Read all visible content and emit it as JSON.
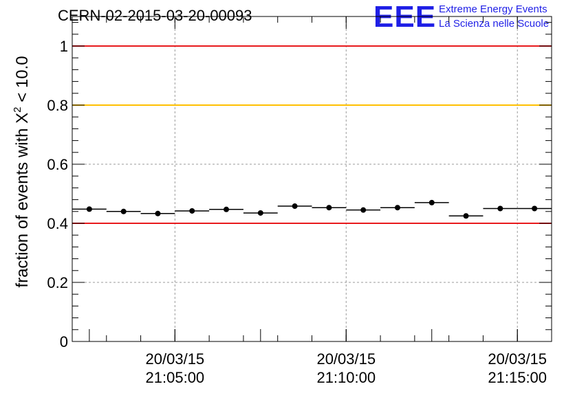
{
  "header": {
    "title": "CERN-02-2015-03-20-00093",
    "logo_text": "EEE",
    "logo_line1": "Extreme Energy Events",
    "logo_line2": "La Scienza nelle Scuole"
  },
  "chart_data": {
    "type": "scatter",
    "title": "CERN-02-2015-03-20-00093",
    "ylabel_prefix": "fraction of events with ",
    "ylabel_symbol": "X",
    "ylabel_sup": "2",
    "ylabel_suffix": " < 10.0",
    "xlabel": "",
    "ylim": [
      0,
      1.1
    ],
    "yticks": [
      0,
      0.2,
      0.4,
      0.6,
      0.8,
      1
    ],
    "ytick_labels": [
      "0",
      "0.2",
      "0.4",
      "0.6",
      "0.8",
      "1"
    ],
    "xlim": [
      "2015-03-20 21:02:00",
      "2015-03-20 21:16:00"
    ],
    "xticks": [
      {
        "t": "2015-03-20 21:05:00",
        "date": "20/03/15",
        "time": "21:05:00"
      },
      {
        "t": "2015-03-20 21:10:00",
        "date": "20/03/15",
        "time": "21:10:00"
      },
      {
        "t": "2015-03-20 21:15:00",
        "date": "20/03/15",
        "time": "21:15:00"
      }
    ],
    "grid": true,
    "reference_lines": [
      {
        "y": 1.0,
        "color": "#e8191c"
      },
      {
        "y": 0.8,
        "color": "#ffc000"
      },
      {
        "y": 0.4,
        "color": "#e8191c"
      }
    ],
    "points": [
      {
        "x": "2015-03-20 21:02:30",
        "y": 0.448
      },
      {
        "x": "2015-03-20 21:03:30",
        "y": 0.44
      },
      {
        "x": "2015-03-20 21:04:30",
        "y": 0.433
      },
      {
        "x": "2015-03-20 21:05:30",
        "y": 0.442
      },
      {
        "x": "2015-03-20 21:06:30",
        "y": 0.447
      },
      {
        "x": "2015-03-20 21:07:30",
        "y": 0.435
      },
      {
        "x": "2015-03-20 21:08:30",
        "y": 0.458
      },
      {
        "x": "2015-03-20 21:09:30",
        "y": 0.453
      },
      {
        "x": "2015-03-20 21:10:30",
        "y": 0.445
      },
      {
        "x": "2015-03-20 21:11:30",
        "y": 0.453
      },
      {
        "x": "2015-03-20 21:12:30",
        "y": 0.47
      },
      {
        "x": "2015-03-20 21:13:30",
        "y": 0.425
      },
      {
        "x": "2015-03-20 21:14:30",
        "y": 0.45
      },
      {
        "x": "2015-03-20 21:15:30",
        "y": 0.45
      }
    ],
    "bin_width_seconds": 60,
    "marker_color": "#000000"
  }
}
